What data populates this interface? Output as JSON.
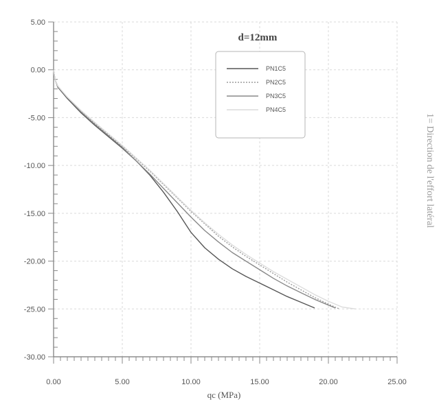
{
  "chart_data": {
    "type": "line",
    "title": "d=12mm",
    "xlabel": "qc (MPa)",
    "ylabel": "",
    "side_text": "1= Direction de l'effort latéral",
    "xlim": [
      0,
      25
    ],
    "ylim": [
      -30,
      5
    ],
    "x_ticks": [
      "0.00",
      "5.00",
      "10.00",
      "15.00",
      "20.00",
      "25.00"
    ],
    "y_ticks": [
      "5.00",
      "0.00",
      "-5.00",
      "-10.00",
      "-15.00",
      "-20.00",
      "-25.00",
      "-30.00"
    ],
    "grid": true,
    "legend_position": "top-right",
    "series": [
      {
        "name": "PN1C5",
        "color": "#555555",
        "dash": "",
        "points": [
          [
            0,
            0
          ],
          [
            0.1,
            -1
          ],
          [
            0.3,
            -1.8
          ],
          [
            1,
            -3
          ],
          [
            2,
            -4.5
          ],
          [
            3,
            -5.8
          ],
          [
            4,
            -7
          ],
          [
            5,
            -8.2
          ],
          [
            6,
            -9.5
          ],
          [
            7,
            -11
          ],
          [
            8,
            -12.8
          ],
          [
            9,
            -14.8
          ],
          [
            10,
            -17
          ],
          [
            11,
            -18.6
          ],
          [
            12,
            -19.8
          ],
          [
            13,
            -20.8
          ],
          [
            14,
            -21.6
          ],
          [
            15,
            -22.3
          ],
          [
            16,
            -23
          ],
          [
            17,
            -23.7
          ],
          [
            18,
            -24.3
          ],
          [
            19,
            -24.9
          ]
        ]
      },
      {
        "name": "PN2C5",
        "color": "#9a9a9a",
        "dash": "2,2",
        "points": [
          [
            0,
            0
          ],
          [
            0.1,
            -1
          ],
          [
            0.3,
            -1.7
          ],
          [
            1,
            -2.9
          ],
          [
            2,
            -4.3
          ],
          [
            3,
            -5.6
          ],
          [
            4,
            -6.8
          ],
          [
            5,
            -8
          ],
          [
            6,
            -9.3
          ],
          [
            7,
            -10.6
          ],
          [
            8,
            -12
          ],
          [
            9,
            -13.4
          ],
          [
            10,
            -14.8
          ],
          [
            11,
            -16.1
          ],
          [
            12,
            -17.4
          ],
          [
            13,
            -18.5
          ],
          [
            14,
            -19.5
          ],
          [
            15,
            -20.4
          ],
          [
            16,
            -21.3
          ],
          [
            17,
            -22.2
          ],
          [
            18,
            -23
          ],
          [
            19,
            -23.8
          ],
          [
            20,
            -24.5
          ],
          [
            20.8,
            -25
          ]
        ]
      },
      {
        "name": "PN3C5",
        "color": "#888888",
        "dash": "",
        "points": [
          [
            0,
            0
          ],
          [
            0.1,
            -1
          ],
          [
            0.3,
            -1.7
          ],
          [
            1,
            -2.9
          ],
          [
            2,
            -4.4
          ],
          [
            3,
            -5.7
          ],
          [
            4,
            -6.9
          ],
          [
            5,
            -8.1
          ],
          [
            6,
            -9.5
          ],
          [
            7,
            -10.9
          ],
          [
            8,
            -12.4
          ],
          [
            9,
            -13.9
          ],
          [
            10,
            -15.4
          ],
          [
            11,
            -16.8
          ],
          [
            12,
            -18
          ],
          [
            13,
            -19.1
          ],
          [
            14,
            -20
          ],
          [
            15,
            -20.9
          ],
          [
            16,
            -21.8
          ],
          [
            17,
            -22.6
          ],
          [
            18,
            -23.3
          ],
          [
            19,
            -24
          ],
          [
            20,
            -24.6
          ],
          [
            20.5,
            -24.9
          ]
        ]
      },
      {
        "name": "PN4C5",
        "color": "#dcdcdc",
        "dash": "",
        "points": [
          [
            0,
            0
          ],
          [
            0.1,
            -1
          ],
          [
            0.3,
            -1.7
          ],
          [
            1,
            -2.85
          ],
          [
            2,
            -4.25
          ],
          [
            3,
            -5.5
          ],
          [
            4,
            -6.7
          ],
          [
            5,
            -7.9
          ],
          [
            6,
            -9.2
          ],
          [
            7,
            -10.5
          ],
          [
            8,
            -11.9
          ],
          [
            9,
            -13.3
          ],
          [
            10,
            -14.7
          ],
          [
            11,
            -16
          ],
          [
            12,
            -17.2
          ],
          [
            13,
            -18.3
          ],
          [
            14,
            -19.3
          ],
          [
            15,
            -20.2
          ],
          [
            16,
            -21.1
          ],
          [
            17,
            -21.9
          ],
          [
            18,
            -22.7
          ],
          [
            19,
            -23.5
          ],
          [
            20,
            -24.2
          ],
          [
            21,
            -24.8
          ],
          [
            22,
            -25
          ]
        ]
      }
    ]
  }
}
